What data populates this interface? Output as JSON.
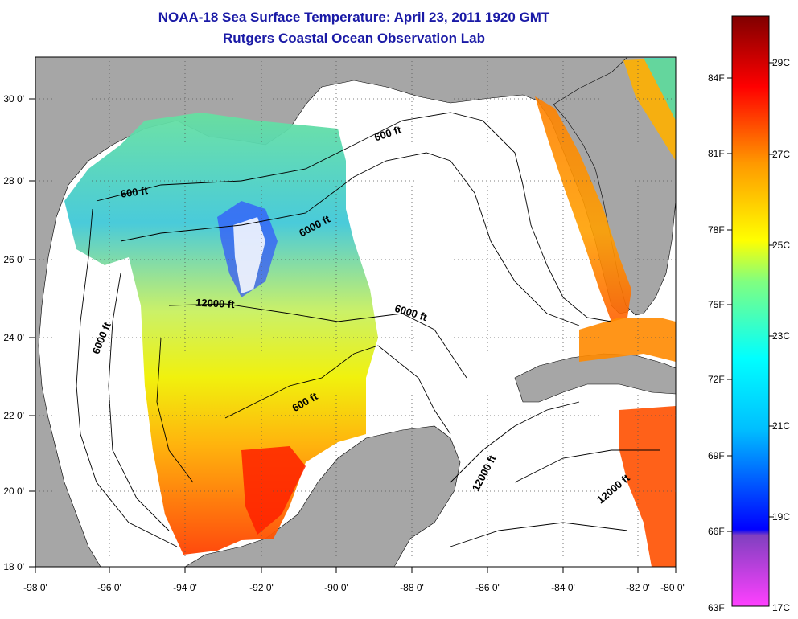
{
  "title": {
    "line1": "NOAA-18 Sea Surface Temperature:  April 23, 2011 1920 GMT",
    "line2": "Rutgers Coastal Ocean Observation Lab"
  },
  "axes": {
    "lat_labels": [
      "30 0'",
      "28 0'",
      "26 0'",
      "24 0'",
      "22 0'",
      "20 0'",
      "18 0'"
    ],
    "lon_labels": [
      "-98 0'",
      "-96 0'",
      "-94 0'",
      "-92 0'",
      "-90 0'",
      "-88 0'",
      "-86 0'",
      "-84 0'",
      "-82 0'",
      "-80 0'"
    ],
    "lat_range": [
      18,
      31
    ],
    "lon_range": [
      -98,
      -80
    ]
  },
  "contour_labels": [
    "600 ft",
    "600 ft",
    "6000 ft",
    "12000 ft",
    "6000 ft",
    "6000 ft",
    "600 ft",
    "12000 ft",
    "12000 ft"
  ],
  "colorbar": {
    "fahrenheit": [
      "84F",
      "81F",
      "78F",
      "75F",
      "72F",
      "69F",
      "66F",
      "63F"
    ],
    "celsius": [
      "29C",
      "27C",
      "25C",
      "23C",
      "21C",
      "19C",
      "17C"
    ],
    "colors": [
      "#800000",
      "#ff0000",
      "#ff8000",
      "#ffff00",
      "#00ffff",
      "#0000ff",
      "#ff40ff"
    ]
  },
  "colors": {
    "land": "#a6a6a6",
    "ocean_nodata": "#ffffff",
    "title": "#1a1aa6"
  }
}
